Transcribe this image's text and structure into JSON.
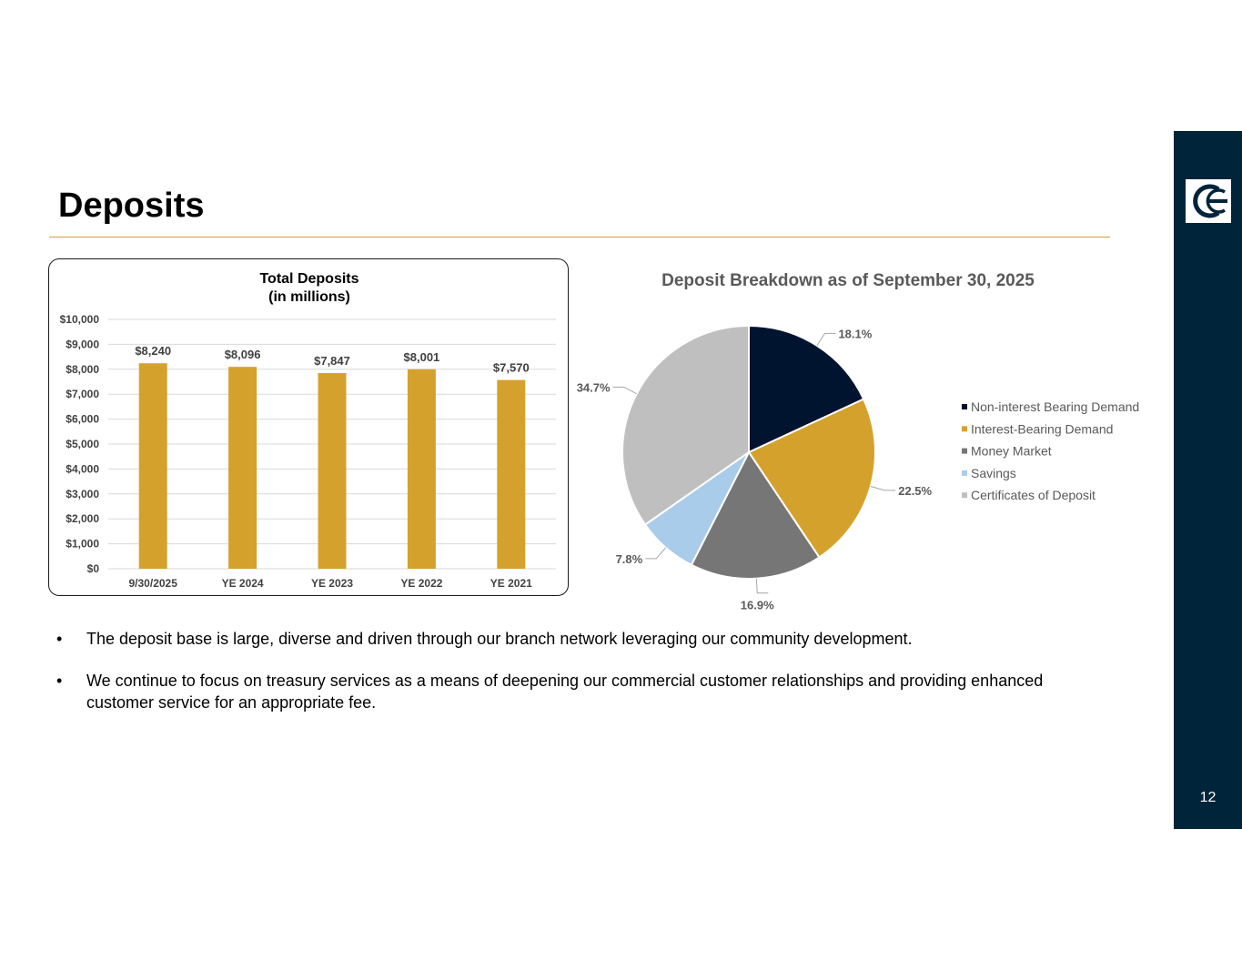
{
  "slide": {
    "title": "Deposits",
    "page_number": "12"
  },
  "bullets": [
    "The deposit base is large, diverse and driven through our branch network leveraging our community development.",
    "We continue to focus on treasury services as a means of deepening our commercial customer relationships and providing enhanced customer service for an appropriate fee."
  ],
  "chart_data": [
    {
      "type": "bar",
      "title": "Total Deposits",
      "subtitle": "(in millions)",
      "categories": [
        "9/30/2025",
        "YE 2024",
        "YE 2023",
        "YE 2022",
        "YE 2021"
      ],
      "values": [
        8240,
        8096,
        7847,
        8001,
        7570
      ],
      "value_labels": [
        "$8,240",
        "$8,096",
        "$7,847",
        "$8,001",
        "$7,570"
      ],
      "y_ticks": [
        "$0",
        "$1,000",
        "$2,000",
        "$3,000",
        "$4,000",
        "$5,000",
        "$6,000",
        "$7,000",
        "$8,000",
        "$9,000",
        "$10,000"
      ],
      "ylim": [
        0,
        10000
      ],
      "grid": true,
      "color": "#D4A22C"
    },
    {
      "type": "pie",
      "title": "Deposit Breakdown as of September 30, 2025",
      "legend_position": "right",
      "slices": [
        {
          "label": "Non-interest Bearing Demand",
          "value": 18.1,
          "value_label": "18.1%",
          "color": "#00132F"
        },
        {
          "label": "Interest-Bearing Demand",
          "value": 22.5,
          "value_label": "22.5%",
          "color": "#D4A22C"
        },
        {
          "label": "Money Market",
          "value": 16.9,
          "value_label": "16.9%",
          "color": "#767676"
        },
        {
          "label": "Savings",
          "value": 7.8,
          "value_label": "7.8%",
          "color": "#A9CCEB"
        },
        {
          "label": "Certificates of Deposit",
          "value": 34.7,
          "value_label": "34.7%",
          "color": "#BFBFBF"
        }
      ]
    }
  ]
}
